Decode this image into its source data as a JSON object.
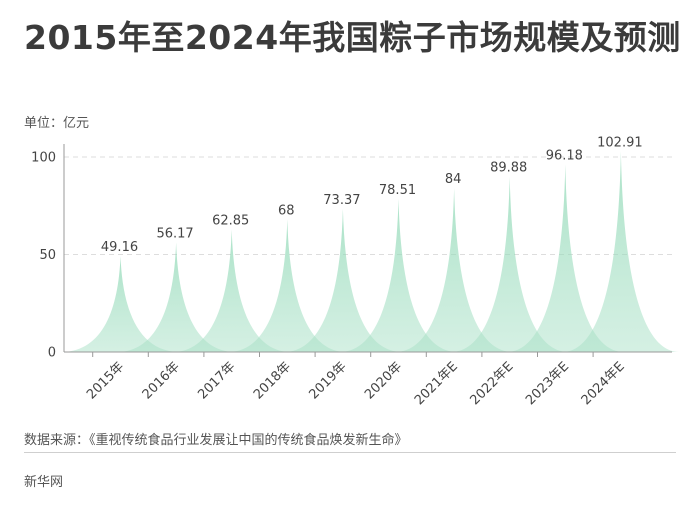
{
  "title": "2015年至2024年我国粽子市场规模及预测",
  "unit": "单位：亿元",
  "source": "数据来源：《重视传统食品行业发展让中国的传统食品焕发新生命》",
  "brand": "新华网",
  "colors": {
    "fill": "#a8e0c6",
    "fill_top": "#8ad7b2",
    "grid": "#dddddd",
    "axis": "#999999"
  },
  "chart_data": {
    "type": "bar",
    "categories": [
      "2015年",
      "2016年",
      "2017年",
      "2018年",
      "2019年",
      "2020年",
      "2021年E",
      "2022年E",
      "2023年E",
      "2024年E"
    ],
    "values": [
      49.16,
      56.17,
      62.85,
      68,
      73.37,
      78.51,
      84,
      89.88,
      96.18,
      102.91
    ],
    "value_labels": [
      "49.16",
      "56.17",
      "62.85",
      "68",
      "73.37",
      "78.51",
      "84",
      "89.88",
      "96.18",
      "102.91"
    ],
    "ylim": [
      0,
      100
    ],
    "yticks": [
      0,
      50,
      100
    ],
    "grid": true
  }
}
